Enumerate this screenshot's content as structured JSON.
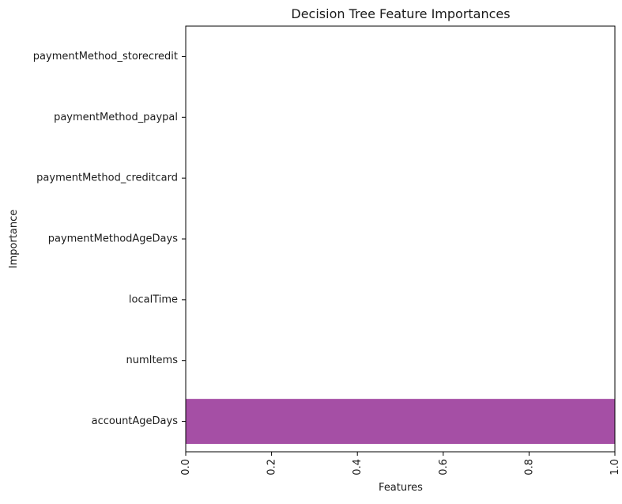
{
  "chart_data": {
    "type": "bar",
    "orientation": "horizontal",
    "title": "Decision Tree Feature Importances",
    "xlabel": "Features",
    "ylabel": "Importance",
    "categories": [
      "accountAgeDays",
      "numItems",
      "localTime",
      "paymentMethodAgeDays",
      "paymentMethod_creditcard",
      "paymentMethod_paypal",
      "paymentMethod_storecredit"
    ],
    "values": [
      1.0,
      0.0,
      0.0,
      0.0,
      0.0,
      0.0,
      0.0
    ],
    "xlim": [
      0,
      1.0
    ],
    "xticks": [
      0.0,
      0.2,
      0.4,
      0.6,
      0.8,
      1.0
    ],
    "xtick_labels": [
      "0.0",
      "0.2",
      "0.4",
      "0.6",
      "0.8",
      "1.0"
    ],
    "xtick_label_rotation": "vertical",
    "bar_color": "#a54fa5",
    "grid": false,
    "legend": "none"
  }
}
